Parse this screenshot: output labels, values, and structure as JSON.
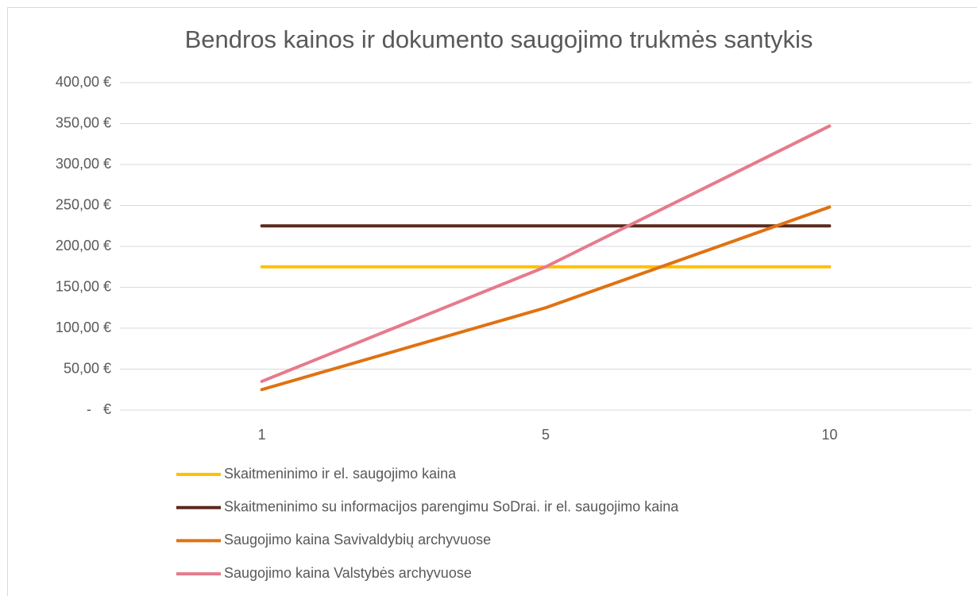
{
  "chart_data": {
    "type": "line",
    "title": "Bendros kainos ir dokumento saugojimo trukmės santykis",
    "categories": [
      "1",
      "5",
      "10"
    ],
    "series": [
      {
        "name": "Skaitmeninimo ir el. saugojimo kaina",
        "color": "#ffc000",
        "values": [
          175,
          175,
          175
        ]
      },
      {
        "name": "Skaitmeninimo su informacijos parengimu SoDrai. ir el. saugojimo kaina",
        "color": "#5b2a1e",
        "values": [
          225,
          225,
          225
        ]
      },
      {
        "name": "Saugojimo kaina Savivaldybių archyvuose",
        "color": "#e07212",
        "values": [
          25,
          125,
          248
        ]
      },
      {
        "name": "Saugojimo kaina Valstybės archyvuose",
        "color": "#e77a8c",
        "values": [
          35,
          175,
          347
        ]
      }
    ],
    "ylim": [
      0,
      400
    ],
    "yticks": [
      {
        "value": 0,
        "label": "-   €"
      },
      {
        "value": 50,
        "label": "50,00 €"
      },
      {
        "value": 100,
        "label": "100,00 €"
      },
      {
        "value": 150,
        "label": "150,00 €"
      },
      {
        "value": 200,
        "label": "200,00 €"
      },
      {
        "value": 250,
        "label": "250,00 €"
      },
      {
        "value": 300,
        "label": "300,00 €"
      },
      {
        "value": 350,
        "label": "350,00 €"
      },
      {
        "value": 400,
        "label": "400,00 €"
      }
    ],
    "grid": true,
    "legend": "bottom"
  }
}
